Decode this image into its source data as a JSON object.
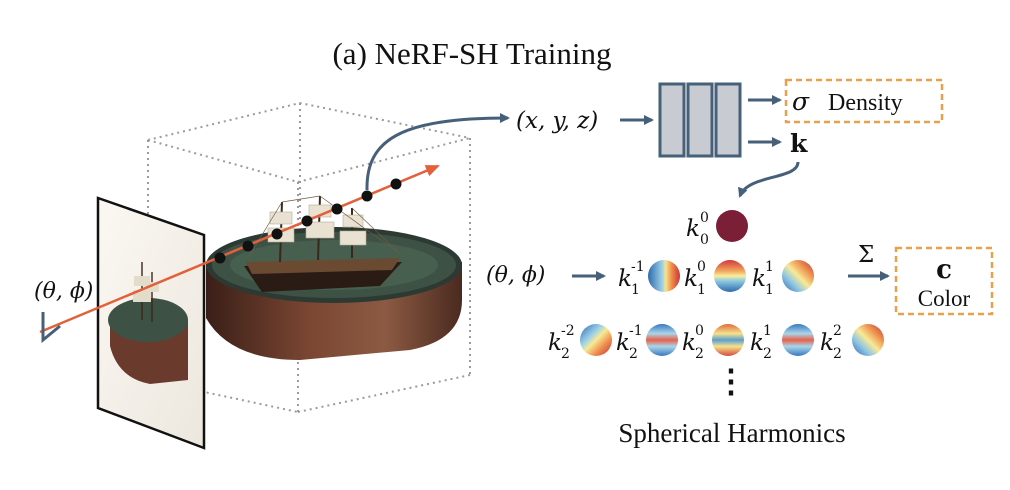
{
  "title": "(a) NeRF-SH Training",
  "view_dir_left": "(θ, ϕ)",
  "position_input": "(x, y, z)",
  "sigma_symbol": "σ",
  "density_label": "Density",
  "k_label": "k",
  "view_dir_right": "(θ, ϕ)",
  "sum_symbol": "Σ",
  "color_symbol": "c",
  "color_label": "Color",
  "sh_caption": "Spherical Harmonics",
  "vertical_ellipsis": "⋮",
  "coefficients": {
    "k00": {
      "base": "k",
      "sup": "0",
      "sub": "0"
    },
    "k1m1": {
      "base": "k",
      "sup": "-1",
      "sub": "1"
    },
    "k10": {
      "base": "k",
      "sup": "0",
      "sub": "1"
    },
    "k11": {
      "base": "k",
      "sup": "1",
      "sub": "1"
    },
    "k2m2": {
      "base": "k",
      "sup": "-2",
      "sub": "2"
    },
    "k2m1": {
      "base": "k",
      "sup": "-1",
      "sub": "2"
    },
    "k20": {
      "base": "k",
      "sup": "0",
      "sub": "2"
    },
    "k21": {
      "base": "k",
      "sup": "1",
      "sub": "2"
    },
    "k22": {
      "base": "k",
      "sup": "2",
      "sub": "2"
    }
  },
  "colors": {
    "arrow": "#46607a",
    "ray": "#e2603a",
    "dashed_box": "#e8a04a",
    "mlp_fill": "#c8ccd2",
    "mlp_stroke": "#46607a",
    "k00_sphere": "#7a1f35"
  }
}
